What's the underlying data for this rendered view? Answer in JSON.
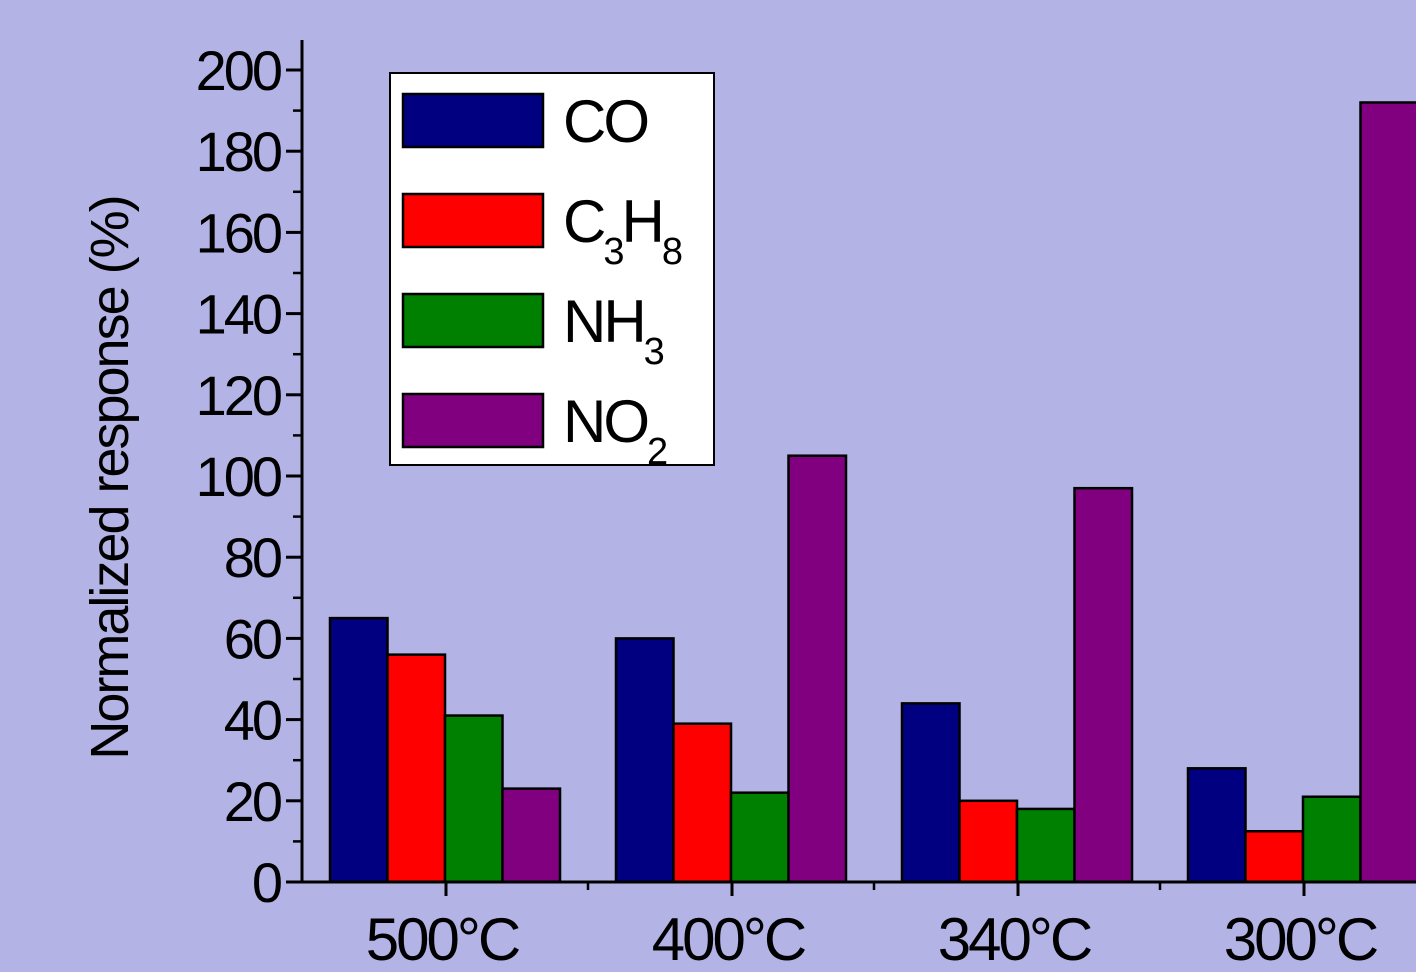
{
  "chart_data": {
    "type": "bar",
    "title": "",
    "xlabel": "",
    "ylabel": "Normalized response (%)",
    "categories": [
      "500°C",
      "400°C",
      "340°C",
      "300°C"
    ],
    "series": [
      {
        "name": "CO",
        "name_main": "CO",
        "name_sub": "",
        "color": "#000080",
        "values": [
          65,
          60,
          44,
          28
        ]
      },
      {
        "name": "C3H8",
        "name_main": "C",
        "name_sub": "3",
        "name_main2": "H",
        "name_sub2": "8",
        "color": "#ff0000",
        "values": [
          56,
          39,
          20,
          12.5
        ]
      },
      {
        "name": "NH3",
        "name_main": "NH",
        "name_sub": "3",
        "color": "#008000",
        "values": [
          41,
          22,
          18,
          21
        ]
      },
      {
        "name": "NO2",
        "name_main": "NO",
        "name_sub": "2",
        "color": "#800080",
        "values": [
          23,
          105,
          97,
          192
        ]
      }
    ],
    "ylim": [
      0,
      200
    ],
    "yticks": [
      "0",
      "20",
      "40",
      "60",
      "80",
      "100",
      "120",
      "140",
      "160",
      "180",
      "200"
    ],
    "grid": false,
    "legend_position": "top-left"
  }
}
